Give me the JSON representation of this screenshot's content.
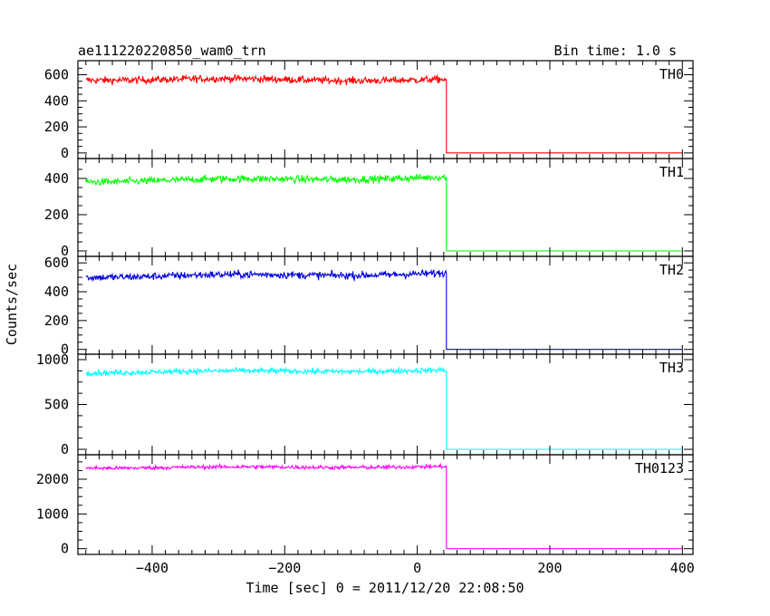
{
  "header": {
    "title": "ae111220220850_wam0_trn",
    "bin_time": "Bin time: 1.0 s"
  },
  "axes": {
    "xlabel": "Time [sec] 0 = 2011/12/20 22:08:50",
    "ylabel": "Counts/sec"
  },
  "chart_data": {
    "type": "line",
    "x_range": [
      -512,
      416
    ],
    "x_ticks": [
      -400,
      -200,
      0,
      200,
      400
    ],
    "x_tick_labels": [
      "−400",
      "−200",
      "0",
      "200",
      "400"
    ],
    "step_time": 44,
    "x_start": -500,
    "x_end": 400,
    "legend": "inline labels at top-right of each panel",
    "grid": false,
    "series": [
      {
        "name": "TH0",
        "color": "#ff0000",
        "ylim": [
          -15,
          680
        ],
        "yticks": [
          0,
          200,
          400,
          600
        ],
        "ytick_labels": [
          "0",
          "200",
          "400",
          "600"
        ],
        "level_start": 565,
        "level_end": 560,
        "noise": 28,
        "after": 0
      },
      {
        "name": "TH1",
        "color": "#00ff00",
        "ylim": [
          -10,
          490
        ],
        "yticks": [
          0,
          200,
          400
        ],
        "ytick_labels": [
          "0",
          "200",
          "400"
        ],
        "level_start": 385,
        "level_end": 405,
        "noise": 20,
        "after": 0
      },
      {
        "name": "TH2",
        "color": "#0000dd",
        "ylim": [
          -8,
          620
        ],
        "yticks": [
          0,
          200,
          400,
          600
        ],
        "ytick_labels": [
          "0",
          "200",
          "400",
          "600"
        ],
        "level_start": 505,
        "level_end": 525,
        "noise": 26,
        "after": 0
      },
      {
        "name": "TH3",
        "color": "#00ffff",
        "ylim": [
          -20,
          1020
        ],
        "yticks": [
          0,
          500,
          1000
        ],
        "ytick_labels": [
          "0",
          "500",
          "1000"
        ],
        "level_start": 860,
        "level_end": 880,
        "noise": 30,
        "after": 0
      },
      {
        "name": "TH0123",
        "color": "#ff00ff",
        "ylim": [
          -60,
          2600
        ],
        "yticks": [
          0,
          1000,
          2000
        ],
        "ytick_labels": [
          "0",
          "1000",
          "2000"
        ],
        "level_start": 2330,
        "level_end": 2360,
        "noise": 55,
        "after": 0
      }
    ]
  }
}
